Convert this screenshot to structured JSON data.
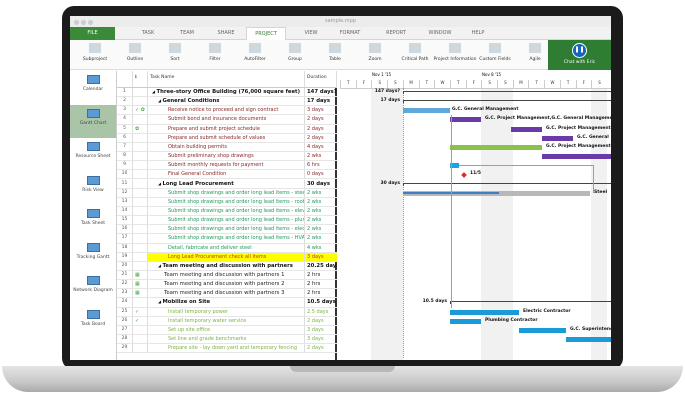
{
  "window": {
    "title": "sample.mpp"
  },
  "tabs": [
    "FILE",
    "TASK",
    "TEAM",
    "SHARE",
    "PROJECT",
    "VIEW",
    "FORMAT",
    "REPORT",
    "WINDOW",
    "HELP"
  ],
  "active_tab": "PROJECT",
  "ribbon": [
    {
      "label": "Subproject",
      "icon": "subproject-icon"
    },
    {
      "label": "Outline",
      "icon": "outline-icon"
    },
    {
      "label": "Sort",
      "icon": "sort-icon"
    },
    {
      "label": "Filter",
      "icon": "filter-icon"
    },
    {
      "label": "AutoFilter",
      "icon": "autofilter-icon"
    },
    {
      "label": "Group",
      "icon": "group-icon"
    },
    {
      "label": "Table",
      "icon": "table-icon"
    },
    {
      "label": "Zoom",
      "icon": "zoom-icon"
    },
    {
      "label": "Critical Path",
      "icon": "critical-path-icon"
    },
    {
      "label": "Project Information",
      "icon": "project-info-icon"
    },
    {
      "label": "Custom Fields",
      "icon": "custom-fields-icon"
    },
    {
      "label": "Agile",
      "icon": "agile-icon"
    }
  ],
  "chat": {
    "label": "Chat with Eric"
  },
  "views": [
    "Calendar",
    "Gantt Chart",
    "Resource Sheet",
    "Risk View",
    "Task Sheet",
    "Tracking Gantt",
    "Network Diagram",
    "Task Board"
  ],
  "active_view": "Gantt Chart",
  "columns": {
    "name": "Task Name",
    "duration": "Duration"
  },
  "timeline": {
    "weeks": [
      "Nov 1 '15",
      "Nov 8 '15"
    ],
    "days": [
      "T",
      "F",
      "S",
      "S",
      "M",
      "T",
      "W",
      "T",
      "F",
      "S",
      "S",
      "M",
      "T",
      "W",
      "T",
      "F",
      "S"
    ]
  },
  "rows": [
    {
      "n": "1",
      "ind": "",
      "name": "Three-story Office Building (76,000 square feet)",
      "dur": "147 days?",
      "lvl": 0,
      "style": "sum"
    },
    {
      "n": "2",
      "ind": "",
      "name": "General Conditions",
      "dur": "17 days",
      "lvl": 1,
      "style": "sum"
    },
    {
      "n": "3",
      "ind": "✓ ✿",
      "name": "Receive notice to proceed and sign contract",
      "dur": "3 days",
      "lvl": 2,
      "style": "red"
    },
    {
      "n": "4",
      "ind": "",
      "name": "Submit bond and insurance documents",
      "dur": "2 days",
      "lvl": 2,
      "style": "red"
    },
    {
      "n": "5",
      "ind": "✿",
      "name": "Prepare and submit project schedule",
      "dur": "2 days",
      "lvl": 2,
      "style": "red"
    },
    {
      "n": "6",
      "ind": "",
      "name": "Prepare and submit schedule of values",
      "dur": "2 days",
      "lvl": 2,
      "style": "red"
    },
    {
      "n": "7",
      "ind": "",
      "name": "Obtain building permits",
      "dur": "4 days",
      "lvl": 2,
      "style": "red"
    },
    {
      "n": "8",
      "ind": "",
      "name": "Submit preliminary shop drawings",
      "dur": "2 wks",
      "lvl": 2,
      "style": "red"
    },
    {
      "n": "9",
      "ind": "",
      "name": "Submit monthly requests for payment",
      "dur": "6 hrs",
      "lvl": 2,
      "style": "red"
    },
    {
      "n": "10",
      "ind": "",
      "name": "Final General Condition",
      "dur": "0 days",
      "lvl": 2,
      "style": "red"
    },
    {
      "n": "11",
      "ind": "",
      "name": "Long Lead Procurement",
      "dur": "30 days",
      "lvl": 1,
      "style": "sum"
    },
    {
      "n": "12",
      "ind": "",
      "name": "Submit shop drawings and order long lead items - steel",
      "dur": "2 wks",
      "lvl": 2,
      "style": "green"
    },
    {
      "n": "13",
      "ind": "",
      "name": "Submit shop drawings and order long lead items - roofing",
      "dur": "2 wks",
      "lvl": 2,
      "style": "green"
    },
    {
      "n": "14",
      "ind": "",
      "name": "Submit shop drawings and order long lead items - elevator",
      "dur": "2 wks",
      "lvl": 2,
      "style": "green"
    },
    {
      "n": "15",
      "ind": "",
      "name": "Submit shop drawings and order long lead items - plumbing",
      "dur": "2 wks",
      "lvl": 2,
      "style": "green"
    },
    {
      "n": "16",
      "ind": "",
      "name": "Submit shop drawings and order long lead items - electric",
      "dur": "2 wks",
      "lvl": 2,
      "style": "green"
    },
    {
      "n": "17",
      "ind": "",
      "name": "Submit shop drawings and order long lead items - HVAC",
      "dur": "2 wks",
      "lvl": 2,
      "style": "green"
    },
    {
      "n": "18",
      "ind": "",
      "name": "Detail, fabricate and deliver steel",
      "dur": "4 wks",
      "lvl": 2,
      "style": "green"
    },
    {
      "n": "19",
      "ind": "",
      "name": "Long Lead Procurement check all items",
      "dur": "3 days",
      "lvl": 2,
      "style": "yellow"
    },
    {
      "n": "20",
      "ind": "",
      "name": "Team meeting and discussion with partners",
      "dur": "20.25 days",
      "lvl": 1,
      "style": "sum"
    },
    {
      "n": "21",
      "ind": "▦",
      "name": "Team meeting and discussion with partners 1",
      "dur": "2 hrs",
      "lvl": 2,
      "style": "black"
    },
    {
      "n": "22",
      "ind": "▦",
      "name": "Team meeting and discussion with partners 2",
      "dur": "2 hrs",
      "lvl": 2,
      "style": "black"
    },
    {
      "n": "23",
      "ind": "▦",
      "name": "Team meeting and discussion with partners 3",
      "dur": "2 hrs",
      "lvl": 2,
      "style": "black"
    },
    {
      "n": "24",
      "ind": "",
      "name": "Mobilize on Site",
      "dur": "10.5 days",
      "lvl": 1,
      "style": "sum"
    },
    {
      "n": "25",
      "ind": "✓",
      "name": "Install temporary power",
      "dur": "2.5 days",
      "lvl": 2,
      "style": "lime"
    },
    {
      "n": "26",
      "ind": "✓",
      "name": "Install temporary water service",
      "dur": "2 days",
      "lvl": 2,
      "style": "lime"
    },
    {
      "n": "27",
      "ind": "",
      "name": "Set up site office",
      "dur": "3 days",
      "lvl": 2,
      "style": "lime"
    },
    {
      "n": "28",
      "ind": "",
      "name": "Set line and grade benchmarks",
      "dur": "3 days",
      "lvl": 2,
      "style": "lime"
    },
    {
      "n": "29",
      "ind": "",
      "name": "Prepare site - lay down yard and temporary fencing",
      "dur": "2 days",
      "lvl": 2,
      "style": "lime"
    }
  ],
  "gantt_labels": {
    "r1": "147 days?",
    "r2": "17 days",
    "r3": "G.C. General Management",
    "r4": "G.C. Project Management,G.C. General Management",
    "r5": "G.C. Project Management",
    "r6": "G.C. General",
    "r7": "G.C. Project Management",
    "r10": "11/5",
    "r11": "30 days",
    "r12": "Steel",
    "r24": "10.5 days",
    "r25": "Electric Contractor",
    "r26": "Plumbing Contractor",
    "r27": "G.C. Superintendent"
  },
  "colors": {
    "file_tab": "#3a8a3a",
    "chat": "#2e7d32",
    "blue_bar": "#1a9ad6",
    "purple_bar": "#6a3aa8",
    "green_bar": "#8bc34a",
    "highlight": "#ffff00"
  }
}
